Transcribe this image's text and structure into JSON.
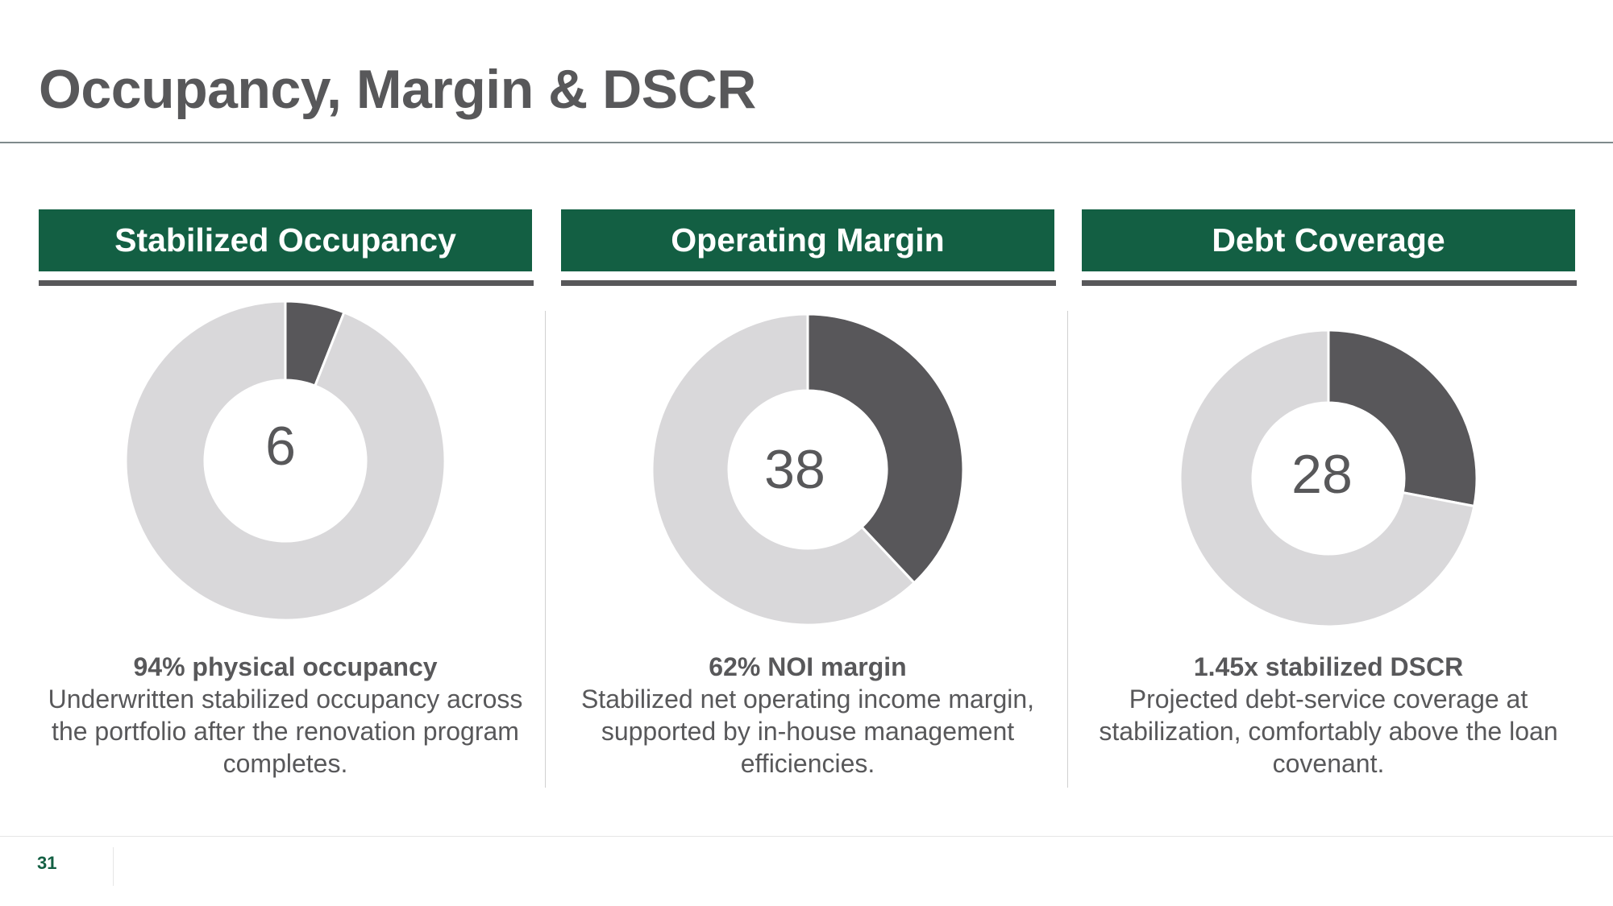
{
  "page": {
    "title": "Occupancy, Margin & DSCR",
    "page_number": "31"
  },
  "colors": {
    "header_bg": "#135f43",
    "segment_dark": "#58575a",
    "segment_light": "#d9d8da",
    "text": "#58585a"
  },
  "chart_data": [
    {
      "type": "pie",
      "title": "Stabilized Occupancy",
      "center_label": "6",
      "slices": [
        {
          "value": 6,
          "color": "#58575a"
        },
        {
          "value": 94,
          "color": "#d9d8da"
        }
      ],
      "caption_lead": "94% physical occupancy",
      "caption_body": "Underwritten stabilized occupancy across the portfolio after the renovation program completes."
    },
    {
      "type": "pie",
      "title": "Operating Margin",
      "center_label": "38",
      "slices": [
        {
          "value": 38,
          "color": "#58575a"
        },
        {
          "value": 62,
          "color": "#d9d8da"
        }
      ],
      "caption_lead": "62% NOI margin",
      "caption_body": "Stabilized net operating income margin, supported by in-house management efficiencies."
    },
    {
      "type": "pie",
      "title": "Debt Coverage",
      "center_label": "28",
      "slices": [
        {
          "value": 28,
          "color": "#58575a"
        },
        {
          "value": 72,
          "color": "#d9d8da"
        }
      ],
      "caption_lead": "1.45x stabilized DSCR",
      "caption_body": "Projected debt-service coverage at stabilization, comfortably above the loan covenant."
    }
  ]
}
